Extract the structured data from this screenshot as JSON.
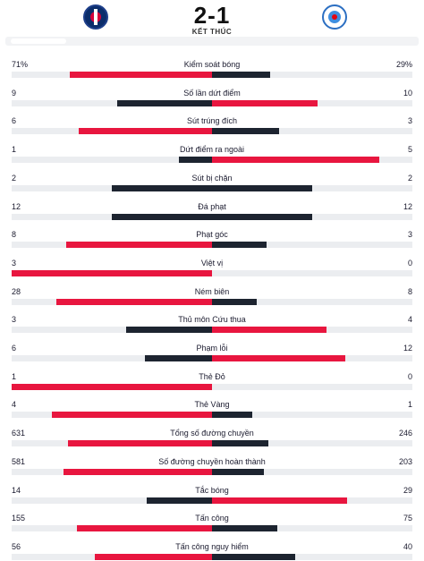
{
  "match": {
    "score": "2-1",
    "status": "KẾT THÚC",
    "home_logo": "psg-crest-icon",
    "away_logo": "strasbourg-crest-icon"
  },
  "colors": {
    "home": "#e8163f",
    "away": "#1d2430",
    "track": "#ebedf0"
  },
  "stats": [
    {
      "label": "Kiểm soát bóng",
      "home": "71%",
      "away": "29%",
      "home_n": 71,
      "away_n": 29
    },
    {
      "label": "Số lần dứt điểm",
      "home": "9",
      "away": "10",
      "home_n": 9,
      "away_n": 10
    },
    {
      "label": "Sút trúng đích",
      "home": "6",
      "away": "3",
      "home_n": 6,
      "away_n": 3
    },
    {
      "label": "Dứt điểm ra ngoài",
      "home": "1",
      "away": "5",
      "home_n": 1,
      "away_n": 5
    },
    {
      "label": "Sút bị chặn",
      "home": "2",
      "away": "2",
      "home_n": 2,
      "away_n": 2
    },
    {
      "label": "Đá phạt",
      "home": "12",
      "away": "12",
      "home_n": 12,
      "away_n": 12
    },
    {
      "label": "Phạt góc",
      "home": "8",
      "away": "3",
      "home_n": 8,
      "away_n": 3
    },
    {
      "label": "Việt vị",
      "home": "3",
      "away": "0",
      "home_n": 3,
      "away_n": 0
    },
    {
      "label": "Ném biên",
      "home": "28",
      "away": "8",
      "home_n": 28,
      "away_n": 8
    },
    {
      "label": "Thủ môn Cứu thua",
      "home": "3",
      "away": "4",
      "home_n": 3,
      "away_n": 4
    },
    {
      "label": "Phạm lỗi",
      "home": "6",
      "away": "12",
      "home_n": 6,
      "away_n": 12
    },
    {
      "label": "Thẻ Đỏ",
      "home": "1",
      "away": "0",
      "home_n": 1,
      "away_n": 0
    },
    {
      "label": "Thẻ Vàng",
      "home": "4",
      "away": "1",
      "home_n": 4,
      "away_n": 1
    },
    {
      "label": "Tổng số đường chuyền",
      "home": "631",
      "away": "246",
      "home_n": 631,
      "away_n": 246
    },
    {
      "label": "Số đường chuyền hoàn thành",
      "home": "581",
      "away": "203",
      "home_n": 581,
      "away_n": 203
    },
    {
      "label": "Tắc bóng",
      "home": "14",
      "away": "29",
      "home_n": 14,
      "away_n": 29
    },
    {
      "label": "Tấn công",
      "home": "155",
      "away": "75",
      "home_n": 155,
      "away_n": 75
    },
    {
      "label": "Tấn công nguy hiểm",
      "home": "56",
      "away": "40",
      "home_n": 56,
      "away_n": 40
    }
  ]
}
